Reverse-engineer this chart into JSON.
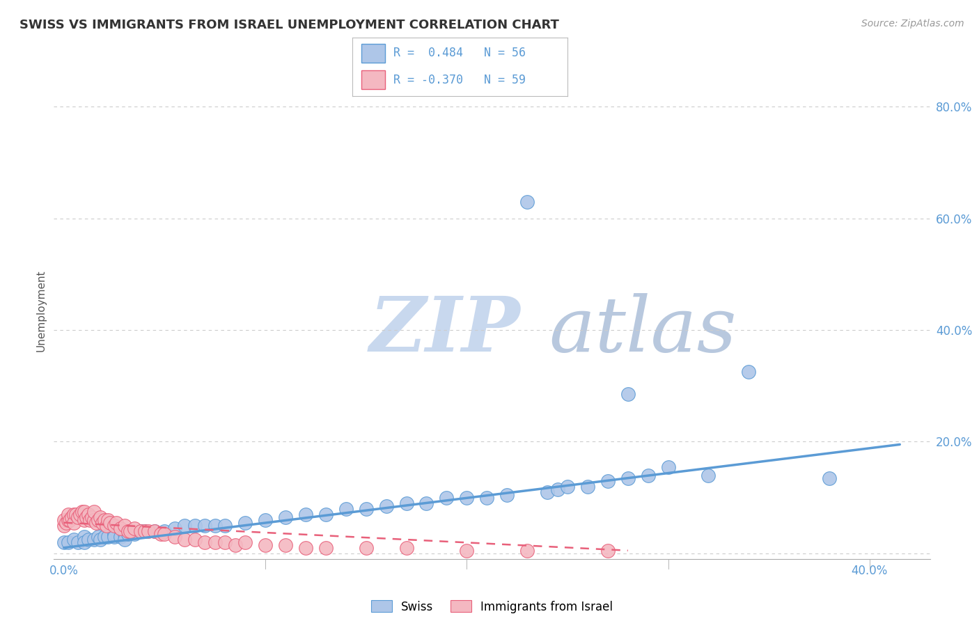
{
  "title": "SWISS VS IMMIGRANTS FROM ISRAEL UNEMPLOYMENT CORRELATION CHART",
  "source_text": "Source: ZipAtlas.com",
  "ylabel_text": "Unemployment",
  "xlim": [
    -0.005,
    0.43
  ],
  "ylim": [
    -0.01,
    0.88
  ],
  "x_tick_vals": [
    0.0,
    0.1,
    0.2,
    0.3,
    0.4
  ],
  "x_tick_labels": [
    "0.0%",
    "",
    "",
    "",
    "40.0%"
  ],
  "y_tick_vals": [
    0.0,
    0.2,
    0.4,
    0.6,
    0.8
  ],
  "y_tick_labels": [
    "",
    "20.0%",
    "40.0%",
    "60.0%",
    "80.0%"
  ],
  "legend_swiss_R": "0.484",
  "legend_swiss_N": "56",
  "legend_israel_R": "-0.370",
  "legend_israel_N": "59",
  "swiss_color": "#5b9bd5",
  "swiss_scatter_color": "#aec6e8",
  "israel_color": "#e8607a",
  "israel_scatter_color": "#f4b8c1",
  "swiss_line_x": [
    0.0,
    0.415
  ],
  "swiss_line_y": [
    0.01,
    0.195
  ],
  "israel_line_x": [
    0.0,
    0.28
  ],
  "israel_line_y": [
    0.055,
    0.005
  ],
  "swiss_pts_x": [
    0.0,
    0.002,
    0.005,
    0.007,
    0.01,
    0.01,
    0.012,
    0.015,
    0.017,
    0.018,
    0.02,
    0.022,
    0.025,
    0.025,
    0.028,
    0.03,
    0.03,
    0.032,
    0.035,
    0.038,
    0.04,
    0.045,
    0.05,
    0.055,
    0.06,
    0.065,
    0.07,
    0.075,
    0.08,
    0.09,
    0.1,
    0.11,
    0.12,
    0.13,
    0.14,
    0.15,
    0.16,
    0.17,
    0.18,
    0.19,
    0.2,
    0.21,
    0.22,
    0.23,
    0.24,
    0.245,
    0.25,
    0.26,
    0.27,
    0.28,
    0.29,
    0.3,
    0.32,
    0.34,
    0.38,
    0.28
  ],
  "swiss_pts_y": [
    0.02,
    0.02,
    0.025,
    0.02,
    0.03,
    0.02,
    0.025,
    0.025,
    0.03,
    0.025,
    0.03,
    0.03,
    0.035,
    0.03,
    0.03,
    0.035,
    0.025,
    0.035,
    0.035,
    0.04,
    0.04,
    0.04,
    0.04,
    0.045,
    0.05,
    0.05,
    0.05,
    0.05,
    0.05,
    0.055,
    0.06,
    0.065,
    0.07,
    0.07,
    0.08,
    0.08,
    0.085,
    0.09,
    0.09,
    0.1,
    0.1,
    0.1,
    0.105,
    0.63,
    0.11,
    0.115,
    0.12,
    0.12,
    0.13,
    0.135,
    0.14,
    0.155,
    0.14,
    0.325,
    0.135,
    0.285
  ],
  "israel_pts_x": [
    0.0,
    0.0,
    0.001,
    0.002,
    0.002,
    0.003,
    0.004,
    0.005,
    0.005,
    0.006,
    0.007,
    0.008,
    0.009,
    0.01,
    0.01,
    0.011,
    0.012,
    0.013,
    0.014,
    0.015,
    0.015,
    0.016,
    0.017,
    0.018,
    0.019,
    0.02,
    0.021,
    0.022,
    0.023,
    0.025,
    0.026,
    0.028,
    0.03,
    0.032,
    0.033,
    0.035,
    0.038,
    0.04,
    0.042,
    0.045,
    0.048,
    0.05,
    0.055,
    0.06,
    0.065,
    0.07,
    0.075,
    0.08,
    0.085,
    0.09,
    0.1,
    0.11,
    0.12,
    0.13,
    0.15,
    0.17,
    0.2,
    0.23,
    0.27
  ],
  "israel_pts_y": [
    0.05,
    0.06,
    0.055,
    0.06,
    0.07,
    0.06,
    0.065,
    0.07,
    0.055,
    0.07,
    0.065,
    0.07,
    0.075,
    0.06,
    0.075,
    0.065,
    0.07,
    0.06,
    0.065,
    0.06,
    0.075,
    0.055,
    0.06,
    0.065,
    0.055,
    0.06,
    0.05,
    0.06,
    0.055,
    0.05,
    0.055,
    0.045,
    0.05,
    0.04,
    0.04,
    0.045,
    0.04,
    0.04,
    0.04,
    0.04,
    0.035,
    0.035,
    0.03,
    0.025,
    0.025,
    0.02,
    0.02,
    0.02,
    0.015,
    0.02,
    0.015,
    0.015,
    0.01,
    0.01,
    0.01,
    0.01,
    0.005,
    0.005,
    0.005
  ],
  "background_color": "#ffffff",
  "grid_color": "#cccccc",
  "watermark_zip_color": "#c8d8ee",
  "watermark_atlas_color": "#b8c8de"
}
